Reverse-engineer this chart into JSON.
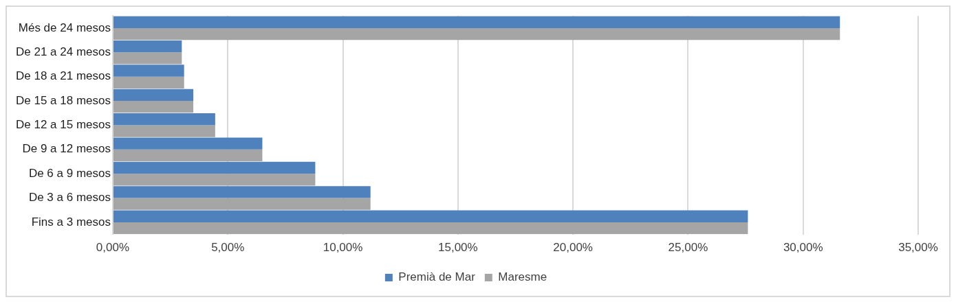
{
  "chart_data": {
    "type": "bar",
    "orientation": "horizontal",
    "categories": [
      "Més de 24 mesos",
      "De 21 a 24 mesos",
      "De 18 a 21 mesos",
      "De 15 a 18 mesos",
      "De 12 a 15 mesos",
      "De 9 a 12 mesos",
      "De 6 a 9 mesos",
      "De 3 a 6 mesos",
      "Fins a 3 mesos"
    ],
    "series": [
      {
        "name": "Premià de Mar",
        "color": "#4f81bd",
        "values": [
          31.6,
          3.0,
          3.1,
          3.5,
          4.45,
          6.5,
          8.8,
          11.2,
          27.6
        ]
      },
      {
        "name": "Maresme",
        "color": "#a5a5a5",
        "values": [
          31.6,
          3.0,
          3.1,
          3.5,
          4.45,
          6.5,
          8.8,
          11.2,
          27.6
        ]
      }
    ],
    "xlim": [
      0,
      35
    ],
    "xticks": [
      {
        "value": 0,
        "label": "0,00%"
      },
      {
        "value": 5,
        "label": "5,00%"
      },
      {
        "value": 10,
        "label": "10,00%"
      },
      {
        "value": 15,
        "label": "15,00%"
      },
      {
        "value": 20,
        "label": "20,00%"
      },
      {
        "value": 25,
        "label": "25,00%"
      },
      {
        "value": 30,
        "label": "30,00%"
      },
      {
        "value": 35,
        "label": "35,00%"
      }
    ],
    "grid": "x",
    "legend": "bottom"
  }
}
